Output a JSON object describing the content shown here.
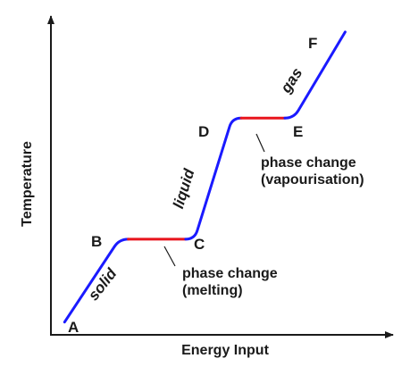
{
  "chart_data": {
    "type": "line",
    "title": "",
    "xlabel": "Energy Input",
    "ylabel": "Temperature",
    "xlim": [
      0,
      100
    ],
    "ylim": [
      0,
      100
    ],
    "grid": false,
    "segments": [
      {
        "from": "A",
        "to": "B",
        "kind": "heating"
      },
      {
        "from": "B",
        "to": "C",
        "kind": "phase-change"
      },
      {
        "from": "C",
        "to": "D",
        "kind": "heating"
      },
      {
        "from": "D",
        "to": "E",
        "kind": "phase-change"
      },
      {
        "from": "E",
        "to": "F",
        "kind": "heating"
      }
    ],
    "points": [
      {
        "label": "A",
        "x": 4,
        "y": 4
      },
      {
        "label": "B",
        "x": 20,
        "y": 30
      },
      {
        "label": "C",
        "x": 42,
        "y": 30
      },
      {
        "label": "D",
        "x": 53,
        "y": 68
      },
      {
        "label": "E",
        "x": 71,
        "y": 68
      },
      {
        "label": "F",
        "x": 86,
        "y": 95
      }
    ],
    "state_labels": {
      "solid": "solid",
      "liquid": "liquid",
      "gas": "gas"
    },
    "annotations": {
      "melting_line1": "phase change",
      "melting_line2": "(melting)",
      "vapour_line1": "phase change",
      "vapour_line2": "(vapourisation)"
    },
    "colors": {
      "heating": "#1a1aff",
      "phase_change": "#e8141c",
      "axis": "#1a1a1a"
    }
  }
}
